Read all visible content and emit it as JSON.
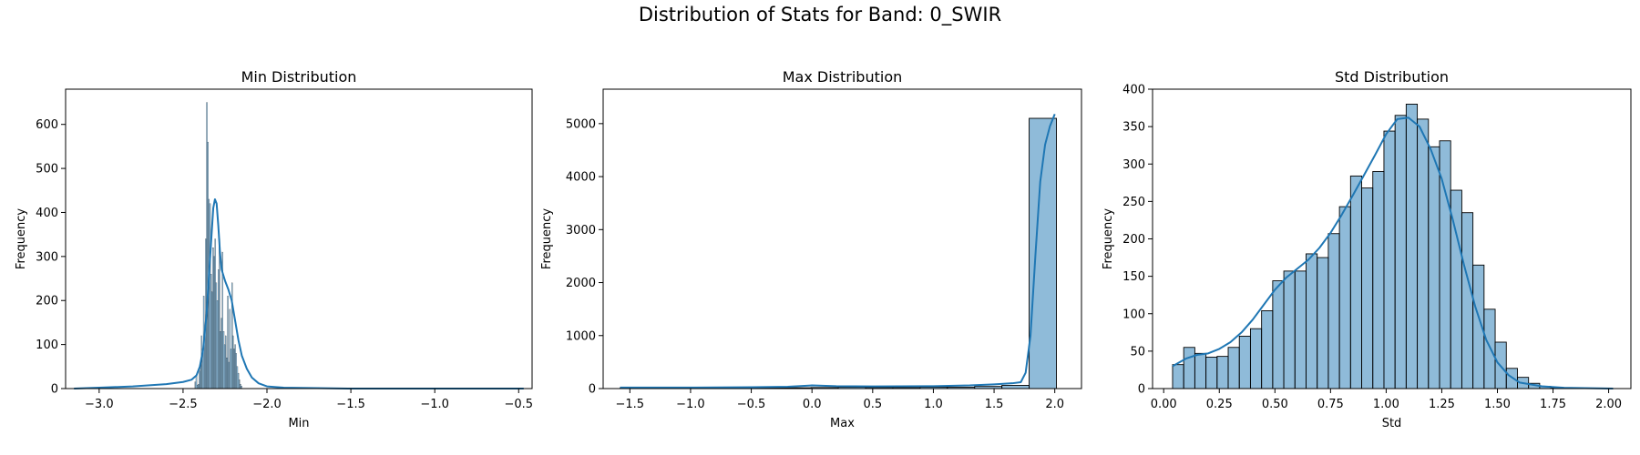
{
  "suptitle": "Distribution of Stats for Band: 0_SWIR",
  "colors": {
    "bar_fill": "#1f77b4",
    "kde": "#1f77b4",
    "bar_edge": "#000000",
    "axis": "#000000"
  },
  "chart_data": [
    {
      "type": "bar",
      "title": "Min Distribution",
      "xlabel": "Min",
      "ylabel": "Frequency",
      "xlim": [
        -3.2,
        -0.42
      ],
      "ylim": [
        0,
        680
      ],
      "xticks": [
        -3.0,
        -2.5,
        -2.0,
        -1.5,
        -1.0,
        -0.5
      ],
      "xtick_labels": [
        "−3.0",
        "−2.5",
        "−2.0",
        "−1.5",
        "−1.0",
        "−0.5"
      ],
      "yticks": [
        0,
        100,
        200,
        300,
        400,
        500,
        600
      ],
      "bars": {
        "bin_start": -2.43,
        "bin_width": 0.00625,
        "values": [
          15,
          30,
          8,
          10,
          40,
          60,
          120,
          90,
          210,
          130,
          340,
          650,
          560,
          430,
          420,
          260,
          220,
          320,
          300,
          340,
          240,
          200,
          270,
          340,
          130,
          160,
          310,
          130,
          100,
          120,
          70,
          210,
          60,
          180,
          90,
          240,
          120,
          90,
          100,
          80,
          50,
          35,
          20,
          10,
          6
        ]
      },
      "kde": {
        "x": [
          -3.15,
          -3.0,
          -2.8,
          -2.6,
          -2.5,
          -2.45,
          -2.42,
          -2.4,
          -2.38,
          -2.36,
          -2.34,
          -2.32,
          -2.31,
          -2.3,
          -2.29,
          -2.28,
          -2.27,
          -2.25,
          -2.23,
          -2.21,
          -2.19,
          -2.17,
          -2.15,
          -2.12,
          -2.09,
          -2.05,
          -2.0,
          -1.9,
          -1.7,
          -1.5,
          -1.0,
          -0.47
        ],
        "y": [
          0,
          2,
          5,
          10,
          15,
          20,
          30,
          50,
          90,
          170,
          290,
          410,
          430,
          420,
          370,
          310,
          270,
          245,
          225,
          200,
          155,
          110,
          75,
          45,
          25,
          12,
          5,
          2,
          1,
          0,
          0,
          0
        ]
      }
    },
    {
      "type": "bar",
      "title": "Max Distribution",
      "xlabel": "Max",
      "ylabel": "Frequency",
      "xlim": [
        -1.72,
        2.22
      ],
      "ylim": [
        0,
        5650
      ],
      "xticks": [
        -1.5,
        -1.0,
        -0.5,
        0.0,
        0.5,
        1.0,
        1.5,
        2.0
      ],
      "xtick_labels": [
        "−1.5",
        "−1.0",
        "−0.5",
        "0.0",
        "0.5",
        "1.0",
        "1.5",
        "2.0"
      ],
      "yticks": [
        0,
        1000,
        2000,
        3000,
        4000,
        5000
      ],
      "bars": {
        "bin_start": -1.58,
        "bin_width": 0.2246,
        "values": [
          15,
          10,
          12,
          15,
          10,
          12,
          15,
          20,
          25,
          20,
          20,
          25,
          25,
          40,
          60,
          5100
        ]
      },
      "kde": {
        "x": [
          -1.58,
          -1.0,
          -0.5,
          -0.2,
          0.0,
          0.2,
          0.5,
          1.0,
          1.3,
          1.5,
          1.65,
          1.72,
          1.76,
          1.8,
          1.84,
          1.88,
          1.92,
          1.96,
          2.0
        ],
        "y": [
          20,
          20,
          25,
          35,
          60,
          45,
          40,
          45,
          60,
          80,
          100,
          120,
          300,
          1000,
          2500,
          3900,
          4600,
          4950,
          5180
        ]
      }
    },
    {
      "type": "bar",
      "title": "Std Distribution",
      "xlabel": "Std",
      "ylabel": "Frequency",
      "xlim": [
        -0.05,
        2.1
      ],
      "ylim": [
        0,
        400
      ],
      "xticks": [
        0.0,
        0.25,
        0.5,
        0.75,
        1.0,
        1.25,
        1.5,
        1.75,
        2.0
      ],
      "xtick_labels": [
        "0.00",
        "0.25",
        "0.50",
        "0.75",
        "1.00",
        "1.25",
        "1.50",
        "1.75",
        "2.00"
      ],
      "yticks": [
        0,
        50,
        100,
        150,
        200,
        250,
        300,
        350,
        400
      ],
      "bars": {
        "bin_start": 0.04,
        "bin_width": 0.05,
        "values": [
          32,
          55,
          47,
          42,
          43,
          55,
          70,
          80,
          104,
          144,
          157,
          157,
          180,
          175,
          207,
          243,
          284,
          268,
          290,
          344,
          365,
          380,
          360,
          323,
          331,
          265,
          235,
          165,
          106,
          62,
          27,
          15,
          7,
          3,
          1,
          0,
          0,
          0,
          0
        ]
      },
      "kde": {
        "x": [
          0.04,
          0.1,
          0.15,
          0.2,
          0.25,
          0.3,
          0.35,
          0.4,
          0.45,
          0.5,
          0.55,
          0.6,
          0.65,
          0.7,
          0.75,
          0.8,
          0.85,
          0.9,
          0.95,
          1.0,
          1.05,
          1.1,
          1.15,
          1.2,
          1.25,
          1.3,
          1.35,
          1.4,
          1.45,
          1.5,
          1.55,
          1.6,
          1.7,
          1.8,
          2.02
        ],
        "y": [
          30,
          40,
          45,
          47,
          53,
          62,
          75,
          92,
          112,
          132,
          148,
          160,
          172,
          188,
          208,
          232,
          258,
          285,
          312,
          340,
          360,
          362,
          350,
          320,
          280,
          225,
          165,
          110,
          65,
          35,
          18,
          8,
          3,
          1,
          0
        ]
      }
    }
  ]
}
